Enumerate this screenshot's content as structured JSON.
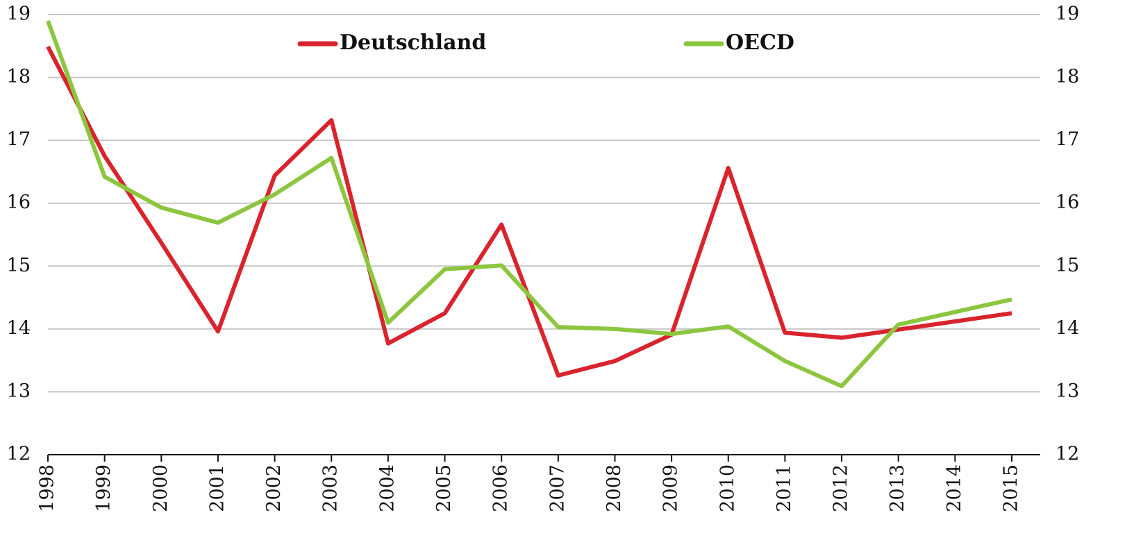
{
  "chart_data": {
    "type": "line",
    "categories": [
      "1998",
      "1999",
      "2000",
      "2001",
      "2002",
      "2003",
      "2004",
      "2005",
      "2006",
      "2007",
      "2008",
      "2009",
      "2010",
      "2011",
      "2012",
      "2013",
      "2014",
      "2015"
    ],
    "series": [
      {
        "name": "Deutschland",
        "color": "#d9232d",
        "values": [
          18.49,
          16.75,
          15.37,
          13.96,
          16.44,
          17.32,
          13.77,
          14.25,
          15.66,
          13.26,
          13.49,
          13.91,
          16.56,
          13.94,
          13.86,
          13.99,
          14.12,
          14.25
        ]
      },
      {
        "name": "OECD",
        "color": "#8cc63f",
        "values": [
          18.9,
          16.42,
          15.93,
          15.69,
          16.14,
          16.72,
          14.1,
          14.95,
          15.01,
          14.03,
          14.0,
          13.92,
          14.04,
          13.49,
          13.09,
          14.07,
          14.27,
          14.47
        ]
      }
    ],
    "ylim": [
      12,
      19
    ],
    "yticks": [
      12,
      13,
      14,
      15,
      16,
      17,
      18,
      19
    ],
    "y2lim": [
      12,
      19
    ],
    "y2ticks": [
      12,
      13,
      14,
      15,
      16,
      17,
      18,
      19
    ],
    "grid": true,
    "legend": "top"
  }
}
